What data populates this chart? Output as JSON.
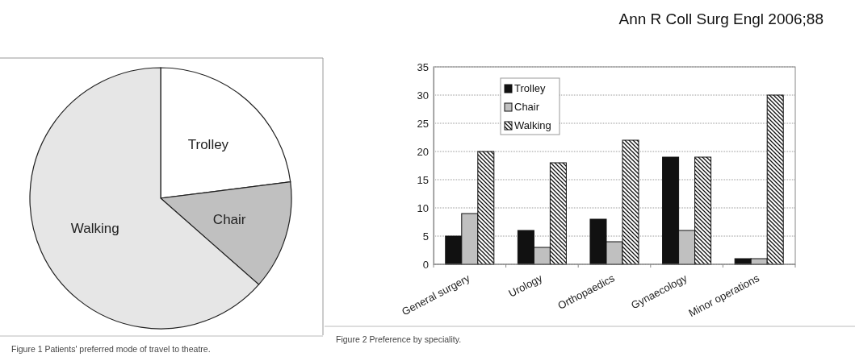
{
  "chart_data": [
    {
      "type": "pie",
      "categories": [
        "Trolley",
        "Chair",
        "Walking"
      ],
      "values": [
        23,
        13.5,
        63.5
      ],
      "colors": [
        "#ffffff",
        "#c0c0c0",
        "#e6e6e6"
      ],
      "legend": false,
      "annotations": [
        "Figure 1 Patients' preferred mode of travel to theatre.",
        "Ann R Coll Surg Engl 2006;88"
      ]
    },
    {
      "type": "bar",
      "categories": [
        "General surgery",
        "Urology",
        "Orthopaedics",
        "Gynaecology",
        "Minor operations"
      ],
      "series": [
        {
          "name": "Trolley",
          "color": "#111111",
          "values": [
            5,
            6,
            8,
            19,
            1
          ]
        },
        {
          "name": "Chair",
          "color": "#c0c0c0",
          "values": [
            9,
            3,
            4,
            6,
            1
          ]
        },
        {
          "name": "Walking",
          "color": "#111111",
          "values": [
            20,
            18,
            22,
            19,
            30
          ]
        }
      ],
      "ylim": [
        0,
        35
      ],
      "yticks": [
        0,
        5,
        10,
        15,
        20,
        25,
        30,
        35
      ],
      "grid": "y",
      "legend": "top left",
      "annotations": [
        "Figure 2 Preference by speciality."
      ]
    }
  ]
}
